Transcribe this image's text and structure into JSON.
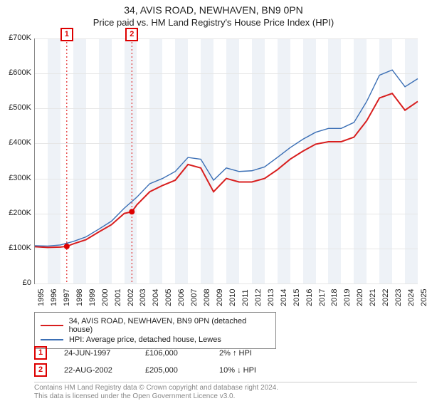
{
  "title_line1": "34, AVIS ROAD, NEWHAVEN, BN9 0PN",
  "title_line2": "Price paid vs. HM Land Registry's House Price Index (HPI)",
  "chart": {
    "type": "line",
    "x_start": 1995,
    "x_end": 2025,
    "x_step": 1,
    "y_start": 0,
    "y_end": 700000,
    "y_step": 100000,
    "y_tick_labels": [
      "£0",
      "£100K",
      "£200K",
      "£300K",
      "£400K",
      "£500K",
      "£600K",
      "£700K"
    ],
    "x_tick_labels": [
      "1995",
      "1996",
      "1997",
      "1998",
      "1999",
      "2000",
      "2001",
      "2002",
      "2003",
      "2004",
      "2005",
      "2006",
      "2007",
      "2008",
      "2009",
      "2010",
      "2011",
      "2012",
      "2013",
      "2014",
      "2015",
      "2016",
      "2017",
      "2018",
      "2019",
      "2020",
      "2021",
      "2022",
      "2023",
      "2024",
      "2025"
    ],
    "background_color": "#ffffff",
    "grid_color": "#e6e6e6",
    "alt_band_color": "#eef2f7",
    "alt_band_years": [
      1996,
      1998,
      2000,
      2002,
      2004,
      2006,
      2008,
      2010,
      2012,
      2014,
      2016,
      2018,
      2020,
      2022,
      2024
    ],
    "sale_markers": [
      {
        "badge": "1",
        "year": 1997.5,
        "price": 106000,
        "dash_color": "#d00"
      },
      {
        "badge": "2",
        "year": 2002.6,
        "price": 205000,
        "dash_color": "#d00"
      }
    ],
    "badge_y_offset": -15,
    "marker_dot_radius": 4,
    "marker_dot_color": "#d00",
    "series": [
      {
        "name": "34, AVIS ROAD, NEWHAVEN, BN9 0PN (detached house)",
        "color": "#d81e1e",
        "width": 2,
        "points": [
          [
            1995,
            105000
          ],
          [
            1996,
            103000
          ],
          [
            1997,
            104000
          ],
          [
            1997.5,
            106000
          ],
          [
            1998,
            113000
          ],
          [
            1999,
            125000
          ],
          [
            2000,
            147000
          ],
          [
            2001,
            168000
          ],
          [
            2002,
            200000
          ],
          [
            2002.6,
            205000
          ],
          [
            2003,
            225000
          ],
          [
            2004,
            262000
          ],
          [
            2005,
            280000
          ],
          [
            2006,
            295000
          ],
          [
            2007,
            340000
          ],
          [
            2008,
            330000
          ],
          [
            2009,
            262000
          ],
          [
            2010,
            300000
          ],
          [
            2011,
            290000
          ],
          [
            2012,
            290000
          ],
          [
            2013,
            300000
          ],
          [
            2014,
            325000
          ],
          [
            2015,
            355000
          ],
          [
            2016,
            378000
          ],
          [
            2017,
            398000
          ],
          [
            2018,
            405000
          ],
          [
            2019,
            405000
          ],
          [
            2020,
            418000
          ],
          [
            2021,
            465000
          ],
          [
            2022,
            530000
          ],
          [
            2023,
            543000
          ],
          [
            2024,
            495000
          ],
          [
            2025,
            520000
          ]
        ]
      },
      {
        "name": "HPI: Average price, detached house, Lewes",
        "color": "#3b6fb5",
        "width": 1.4,
        "points": [
          [
            1995,
            108000
          ],
          [
            1996,
            107000
          ],
          [
            1997,
            110000
          ],
          [
            1998,
            120000
          ],
          [
            1999,
            133000
          ],
          [
            2000,
            155000
          ],
          [
            2001,
            178000
          ],
          [
            2002,
            215000
          ],
          [
            2003,
            247000
          ],
          [
            2004,
            285000
          ],
          [
            2005,
            300000
          ],
          [
            2006,
            320000
          ],
          [
            2007,
            360000
          ],
          [
            2008,
            355000
          ],
          [
            2009,
            295000
          ],
          [
            2010,
            330000
          ],
          [
            2011,
            320000
          ],
          [
            2012,
            322000
          ],
          [
            2013,
            333000
          ],
          [
            2014,
            360000
          ],
          [
            2015,
            388000
          ],
          [
            2016,
            412000
          ],
          [
            2017,
            432000
          ],
          [
            2018,
            443000
          ],
          [
            2019,
            443000
          ],
          [
            2020,
            460000
          ],
          [
            2021,
            520000
          ],
          [
            2022,
            595000
          ],
          [
            2023,
            610000
          ],
          [
            2024,
            562000
          ],
          [
            2025,
            585000
          ]
        ]
      }
    ]
  },
  "legend": {
    "border_color": "#888",
    "items": [
      {
        "color": "#d81e1e",
        "label": "34, AVIS ROAD, NEWHAVEN, BN9 0PN (detached house)"
      },
      {
        "color": "#3b6fb5",
        "label": "HPI: Average price, detached house, Lewes"
      }
    ]
  },
  "sales_table": [
    {
      "badge": "1",
      "date": "24-JUN-1997",
      "price": "£106,000",
      "delta": "2% ↑ HPI"
    },
    {
      "badge": "2",
      "date": "22-AUG-2002",
      "price": "£205,000",
      "delta": "10% ↓ HPI"
    }
  ],
  "footer_line1": "Contains HM Land Registry data © Crown copyright and database right 2024.",
  "footer_line2": "This data is licensed under the Open Government Licence v3.0."
}
